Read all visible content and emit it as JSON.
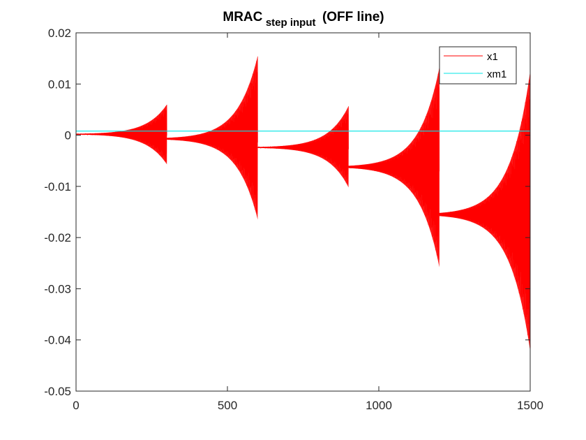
{
  "chart_data": {
    "type": "line",
    "title": {
      "main": "MRAC",
      "subscript": "step input",
      "suffix": "(OFF line)"
    },
    "xlabel": "",
    "ylabel": "",
    "xlim": [
      0,
      1500
    ],
    "ylim": [
      -0.05,
      0.02
    ],
    "x_ticks": [
      0,
      500,
      1000,
      1500
    ],
    "x_tick_labels": [
      "0",
      "500",
      "1000",
      "1500"
    ],
    "y_ticks": [
      0.02,
      0.01,
      0,
      -0.01,
      -0.02,
      -0.03,
      -0.04,
      -0.05
    ],
    "y_tick_labels": [
      "0.02",
      "0.01",
      "0",
      "-0.01",
      "-0.02",
      "-0.03",
      "-0.04",
      "-0.05"
    ],
    "grid": false,
    "legend_position": "top-right",
    "series": [
      {
        "name": "x1",
        "color": "#ff0000",
        "kind": "growing oscillation",
        "segments": [
          {
            "x_start": 0,
            "x_end": 300,
            "center": 0.0002,
            "upper_end": 0.006,
            "lower_end": -0.0057
          },
          {
            "x_start": 300,
            "x_end": 600,
            "center": -0.0007,
            "upper_end": 0.0155,
            "lower_end": -0.0165
          },
          {
            "x_start": 600,
            "x_end": 900,
            "center": -0.0024,
            "upper_end": 0.0057,
            "lower_end": -0.0102
          },
          {
            "x_start": 900,
            "x_end": 1200,
            "center": -0.0062,
            "upper_end": 0.0132,
            "lower_end": -0.0258
          },
          {
            "x_start": 1200,
            "x_end": 1500,
            "center": -0.0155,
            "upper_end": 0.0125,
            "lower_end": -0.0422
          }
        ]
      },
      {
        "name": "xm1",
        "color": "#00e5e5",
        "kind": "constant",
        "x": [
          0,
          1500
        ],
        "y": [
          0.0008,
          0.0008
        ]
      }
    ]
  }
}
